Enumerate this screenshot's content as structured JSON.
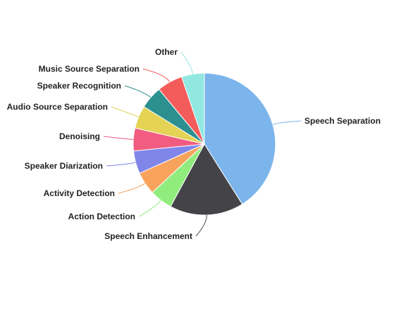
{
  "chart_data": {
    "type": "pie",
    "title": "",
    "start_angle_deg": 0,
    "direction": "clockwise",
    "slices": [
      {
        "label": "Speech Separation",
        "value": 39.6,
        "color": "#7cb5ec"
      },
      {
        "label": "Speech Enhancement",
        "value": 16.2,
        "color": "#434348"
      },
      {
        "label": "Action Detection",
        "value": 5.0,
        "color": "#90ed7d"
      },
      {
        "label": "Activity Detection",
        "value": 5.0,
        "color": "#f7a35c"
      },
      {
        "label": "Speaker Diarization",
        "value": 5.0,
        "color": "#8085e9"
      },
      {
        "label": "Denoising",
        "value": 5.0,
        "color": "#f15c80"
      },
      {
        "label": "Audio Source Separation",
        "value": 5.0,
        "color": "#e4d354"
      },
      {
        "label": "Speaker Recognition",
        "value": 5.0,
        "color": "#2b908f"
      },
      {
        "label": "Music Source Separation",
        "value": 5.6,
        "color": "#f45b5b"
      },
      {
        "label": "Other",
        "value": 5.0,
        "color": "#91e8e1"
      }
    ]
  }
}
